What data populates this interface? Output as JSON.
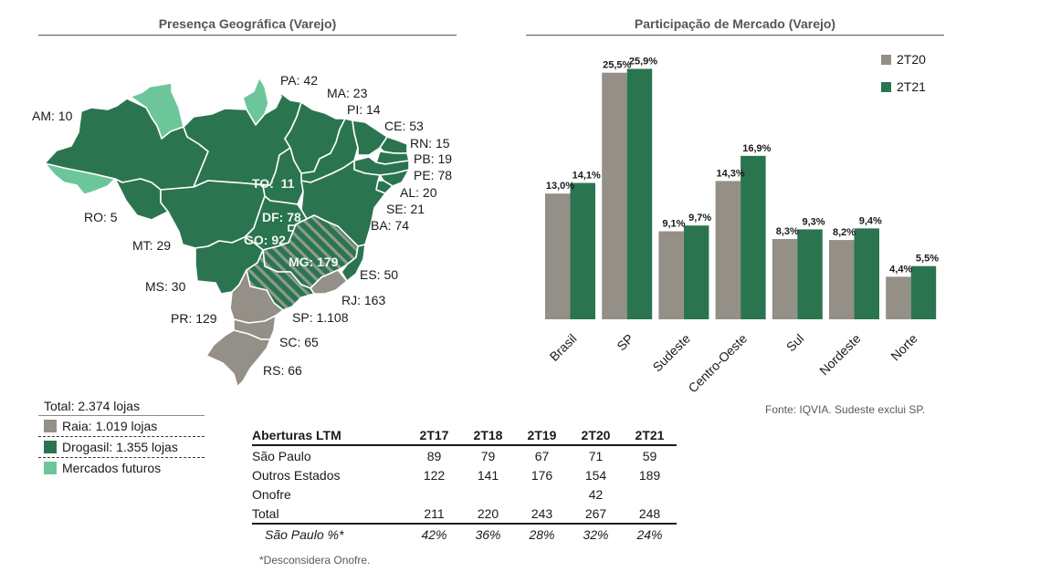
{
  "left_panel": {
    "title": "Presença Geográfica (Varejo)",
    "state_labels": [
      {
        "id": "AM",
        "text": "AM: 10"
      },
      {
        "id": "PA",
        "text": "PA: 42"
      },
      {
        "id": "MA",
        "text": "MA: 23"
      },
      {
        "id": "PI",
        "text": "PI: 14"
      },
      {
        "id": "CE",
        "text": "CE: 53"
      },
      {
        "id": "RN",
        "text": "RN: 15"
      },
      {
        "id": "PB",
        "text": "PB: 19"
      },
      {
        "id": "PE",
        "text": "PE: 78"
      },
      {
        "id": "AL",
        "text": "AL: 20"
      },
      {
        "id": "SE",
        "text": "SE: 21"
      },
      {
        "id": "BA",
        "text": "BA: 74"
      },
      {
        "id": "TO",
        "text": "TO:  11"
      },
      {
        "id": "DF",
        "text": "DF: 78"
      },
      {
        "id": "GO",
        "text": "GO: 92"
      },
      {
        "id": "MG",
        "text": "MG: 179"
      },
      {
        "id": "ES",
        "text": "ES: 50"
      },
      {
        "id": "RJ",
        "text": "RJ: 163"
      },
      {
        "id": "SP",
        "text": "SP: 1.108"
      },
      {
        "id": "PR",
        "text": "PR: 129"
      },
      {
        "id": "SC",
        "text": "SC: 65"
      },
      {
        "id": "RS",
        "text": "RS: 66"
      },
      {
        "id": "MS",
        "text": "MS: 30"
      },
      {
        "id": "MT",
        "text": "MT: 29"
      },
      {
        "id": "RO",
        "text": "RO: 5"
      }
    ],
    "legend": {
      "total": "Total: 2.374 lojas",
      "items": [
        {
          "label": "Raia: 1.019 lojas",
          "color": "#948f87"
        },
        {
          "label": "Drogasil: 1.355 lojas",
          "color": "#2a7550"
        },
        {
          "label": "Mercados futuros",
          "color": "#6cc699"
        }
      ]
    }
  },
  "table": {
    "headers": [
      "Aberturas LTM",
      "2T17",
      "2T18",
      "2T19",
      "2T20",
      "2T21"
    ],
    "rows": [
      {
        "label": "São Paulo",
        "values": [
          "89",
          "79",
          "67",
          "71",
          "59"
        ]
      },
      {
        "label": "Outros Estados",
        "values": [
          "122",
          "141",
          "176",
          "154",
          "189"
        ]
      },
      {
        "label": "Onofre",
        "values": [
          "",
          "",
          "",
          "42",
          ""
        ]
      },
      {
        "label": "Total",
        "values": [
          "211",
          "220",
          "243",
          "267",
          "248"
        ]
      },
      {
        "label": "São Paulo %*",
        "values": [
          "42%",
          "36%",
          "28%",
          "32%",
          "24%"
        ]
      }
    ],
    "footnote": "*Desconsidera Onofre."
  },
  "chart_data": {
    "type": "bar",
    "title": "Participação de Mercado (Varejo)",
    "xlabel": "",
    "ylabel": "",
    "ylim": [
      0,
      30
    ],
    "grid": false,
    "legend_position": "top-right",
    "categories": [
      "Brasil",
      "SP",
      "Sudeste",
      "Centro-Oeste",
      "Sul",
      "Nordeste",
      "Norte"
    ],
    "series": [
      {
        "name": "2T20",
        "color": "#948f87",
        "values": [
          13.0,
          25.5,
          9.1,
          14.3,
          8.3,
          8.2,
          4.4
        ],
        "labels": [
          "13,0%",
          "25,5%",
          "9,1%",
          "14,3%",
          "8,3%",
          "8,2%",
          "4,4%"
        ]
      },
      {
        "name": "2T21",
        "color": "#2a7550",
        "values": [
          14.1,
          25.9,
          9.7,
          16.9,
          9.3,
          9.4,
          5.5
        ],
        "labels": [
          "14,1%",
          "25,9%",
          "9,7%",
          "16,9%",
          "9,3%",
          "9,4%",
          "5,5%"
        ]
      }
    ],
    "source": "Fonte: IQVIA. Sudeste exclui SP."
  }
}
